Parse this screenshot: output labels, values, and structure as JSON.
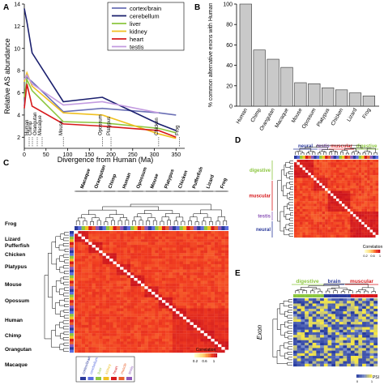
{
  "panels": {
    "a": "A",
    "b": "B",
    "c": "C",
    "d": "D",
    "e": "E"
  },
  "chart_data": [
    {
      "type": "line",
      "xlabel": "Divergence from Human (Ma)",
      "ylabel": "Relative AS abundance",
      "xlim": [
        0,
        370
      ],
      "ylim": [
        1,
        14
      ],
      "xticks": [
        "0",
        "50",
        "100",
        "150",
        "200",
        "250",
        "300",
        "350"
      ],
      "yticks": [
        "2",
        "4",
        "6",
        "8",
        "10",
        "12",
        "14"
      ],
      "legend_position": "top-right",
      "series": [
        {
          "name": "cortex/brain",
          "color": "#6a6fb5",
          "x": [
            0,
            6,
            18,
            90,
            180,
            310,
            350
          ],
          "y": [
            4.8,
            7.4,
            7.0,
            4.3,
            4.6,
            4.2,
            4.0
          ]
        },
        {
          "name": "cerebellum",
          "color": "#1a1f6e",
          "x": [
            0,
            6,
            18,
            90,
            180,
            310,
            350
          ],
          "y": [
            13.6,
            12.4,
            9.6,
            5.2,
            5.6,
            3.2,
            2.6
          ]
        },
        {
          "name": "liver",
          "color": "#8cc63f",
          "x": [
            0,
            6,
            18,
            90,
            180,
            310,
            350
          ],
          "y": [
            5.6,
            7.2,
            6.2,
            3.4,
            3.3,
            2.8,
            2.4
          ]
        },
        {
          "name": "kidney",
          "color": "#f0c020",
          "x": [
            0,
            6,
            18,
            90,
            180,
            310,
            350
          ],
          "y": [
            7.0,
            7.8,
            6.6,
            4.2,
            4.0,
            2.3,
            1.9
          ]
        },
        {
          "name": "heart",
          "color": "#d7191c",
          "x": [
            0,
            6,
            18,
            90,
            180,
            310,
            350
          ],
          "y": [
            4.6,
            6.8,
            4.8,
            3.2,
            3.0,
            2.6,
            2.0
          ]
        },
        {
          "name": "testis",
          "color": "#c39be0",
          "x": [
            0,
            6,
            18,
            90,
            180,
            310
          ],
          "y": [
            7.2,
            7.6,
            6.8,
            4.9,
            5.2,
            4.2
          ]
        }
      ],
      "annotations": [
        "Human",
        "Chimp",
        "Orangutan",
        "Macaque",
        "Mouse",
        "Opossum",
        "Platypus",
        "Chicken",
        "Frog"
      ]
    },
    {
      "type": "bar",
      "ylabel": "% common alternative exons with Human",
      "ylim": [
        0,
        100
      ],
      "yticks": [
        "0",
        "20",
        "40",
        "60",
        "80",
        "100"
      ],
      "categories": [
        "Human",
        "Chimp",
        "Orangutan",
        "Macaque",
        "Mouse",
        "Opossum",
        "Platypus",
        "Chicken",
        "Lizard",
        "Frog"
      ],
      "values": [
        100,
        55,
        46,
        38,
        23,
        22,
        18,
        16,
        13,
        10
      ]
    },
    {
      "type": "heatmap",
      "species": [
        "Macaque",
        "Orangutan",
        "Chimp",
        "Human",
        "Opossum",
        "Mouse",
        "Platypus",
        "Chicken",
        "Pufferfish",
        "Lizard",
        "Frog"
      ],
      "row_labels": [
        "Frog",
        "Lizard",
        "Pufferfish",
        "Chicken",
        "Platypus",
        "Mouse",
        "Opossum",
        "Human",
        "Chimp",
        "Orangutan",
        "Macaque"
      ],
      "tissue_legend": [
        "cortex/brain",
        "cerebellum",
        "liver",
        "kidney",
        "heart",
        "muscle",
        "testis"
      ],
      "colorbar_title": "Correlation",
      "colorbar_ticks": [
        "0.2",
        "0.6",
        "1"
      ]
    },
    {
      "type": "heatmap",
      "column_groups": [
        "neural",
        "testis",
        "muscular",
        "digestive"
      ],
      "row_groups": [
        "digestive",
        "muscular",
        "testis",
        "neural"
      ],
      "colorbar_title": "Correlation",
      "colorbar_ticks": [
        "0.2",
        "0.6",
        "1"
      ]
    },
    {
      "type": "heatmap",
      "column_groups": [
        "digestive",
        "brain",
        "muscular"
      ],
      "ylabel": "Exon",
      "colorbar_title": "PSI",
      "colorbar_ticks": [
        "0",
        "1"
      ]
    }
  ]
}
